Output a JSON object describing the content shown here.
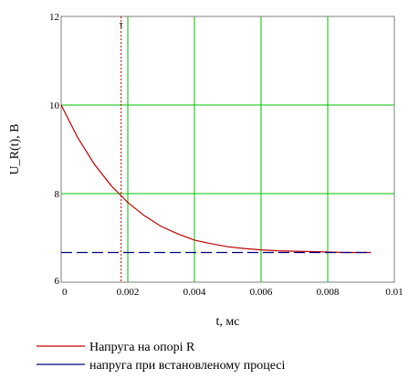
{
  "chart_data": {
    "type": "line",
    "xlabel": "t, мс",
    "ylabel": "U_R(t), В",
    "xlim": [
      0,
      0.01
    ],
    "ylim": [
      6,
      12
    ],
    "x_ticks": [
      "0",
      "0.002",
      "0.004",
      "0.006",
      "0.008",
      "0.01"
    ],
    "y_ticks": [
      "6",
      "8",
      "10",
      "12"
    ],
    "x_tick_values": [
      0,
      0.002,
      0.004,
      0.006,
      0.008,
      0.01
    ],
    "y_tick_values": [
      6,
      8,
      10,
      12
    ],
    "grid": true,
    "grid_color": "#00c000",
    "marker": {
      "label": "τ",
      "x": 0.0018,
      "color": "#c00000"
    },
    "series": [
      {
        "name": "Напруга на опорі R",
        "color": "#c00000",
        "style": "solid",
        "x": [
          0,
          0.0005,
          0.001,
          0.0015,
          0.002,
          0.0025,
          0.003,
          0.0035,
          0.004,
          0.0045,
          0.005,
          0.0055,
          0.006,
          0.0065,
          0.007,
          0.0075,
          0.008,
          0.0085,
          0.009,
          0.0093
        ],
        "y": [
          10.0,
          9.26,
          8.66,
          8.18,
          7.8,
          7.5,
          7.26,
          7.09,
          6.95,
          6.87,
          6.8,
          6.76,
          6.73,
          6.71,
          6.7,
          6.69,
          6.68,
          6.67,
          6.67,
          6.67
        ]
      },
      {
        "name": "напруга при встановленому процесі",
        "color": "#000080",
        "style": "dashed",
        "x": [
          0,
          0.0093
        ],
        "y": [
          6.67,
          6.67
        ]
      }
    ],
    "legend_position": "bottom-left"
  }
}
